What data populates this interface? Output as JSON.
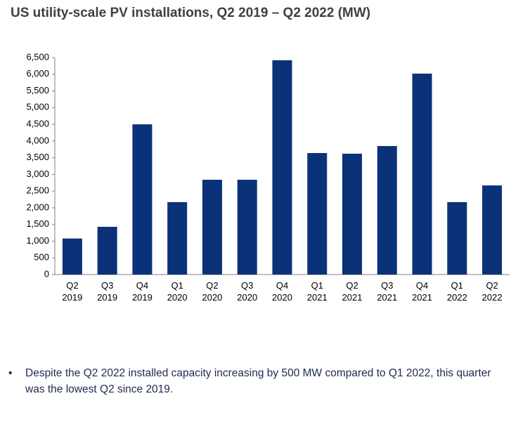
{
  "chart_data": {
    "type": "bar",
    "title": "US utility-scale PV installations, Q2 2019 – Q2 2022 (MW)",
    "categories": [
      "Q2 2019",
      "Q3 2019",
      "Q4 2019",
      "Q1 2020",
      "Q2 2020",
      "Q3 2020",
      "Q4 2020",
      "Q1 2021",
      "Q2 2021",
      "Q3 2021",
      "Q4 2021",
      "Q1 2022",
      "Q2 2022"
    ],
    "values": [
      1080,
      1430,
      4500,
      2170,
      2840,
      2840,
      6420,
      3640,
      3620,
      3850,
      6020,
      2170,
      2670
    ],
    "color": "#0b3178",
    "ylim": [
      0,
      6500
    ],
    "yticks": [
      0,
      500,
      {
        "value": 1000,
        "label": "1,000"
      },
      {
        "value": 1500,
        "label": "1,500"
      },
      {
        "value": 2000,
        "label": "2,000"
      },
      {
        "value": 2500,
        "label": "2,500"
      },
      {
        "value": 3000,
        "label": "3,000"
      },
      {
        "value": 3500,
        "label": "3,500"
      },
      {
        "value": 4000,
        "label": "4,000"
      },
      {
        "value": 4500,
        "label": "4,500"
      },
      {
        "value": 5000,
        "label": "5,000"
      },
      {
        "value": 5500,
        "label": "5,500"
      },
      {
        "value": 6000,
        "label": "6,000"
      },
      {
        "value": 6500,
        "label": "6,500"
      }
    ],
    "grid": false
  },
  "note": "Despite the Q2 2022 installed capacity increasing by 500 MW compared to Q1 2022, this quarter was the lowest Q2 since 2019."
}
